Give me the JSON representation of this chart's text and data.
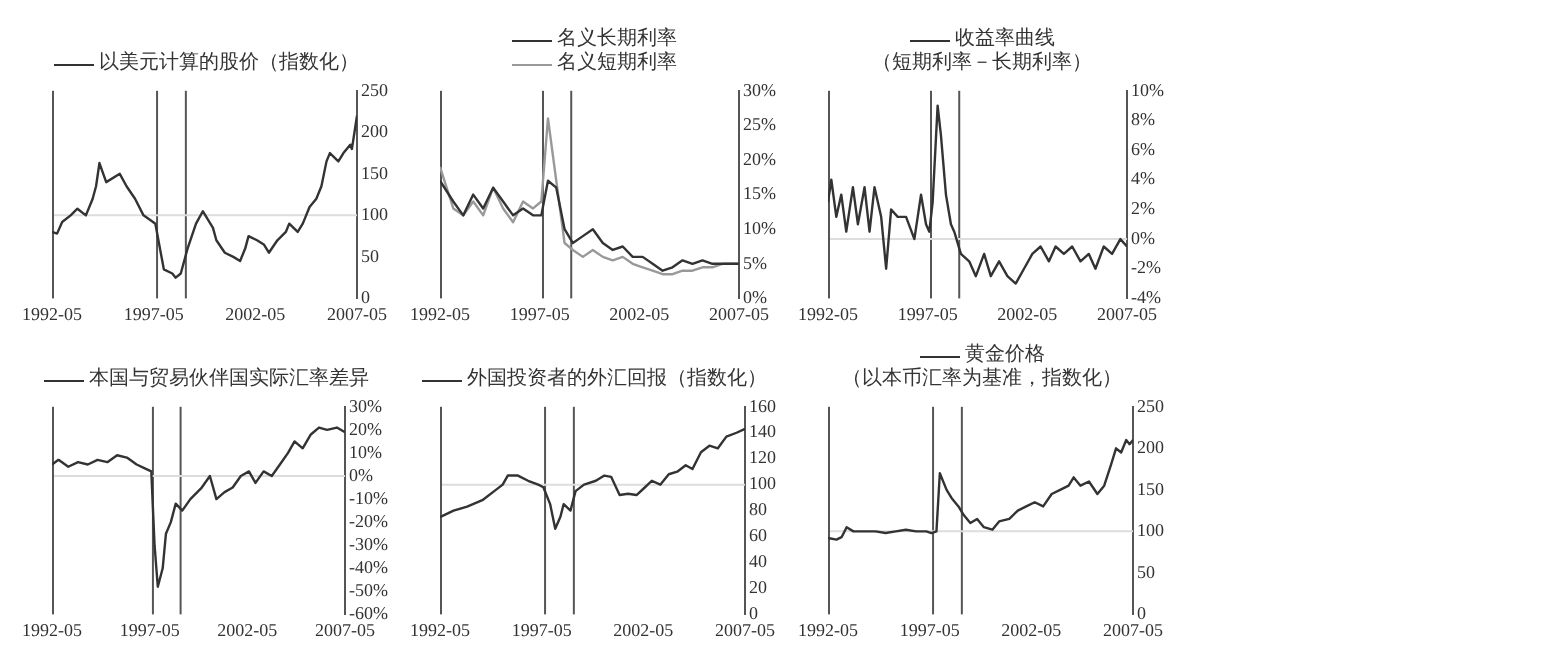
{
  "chart_data": [
    {
      "type": "line",
      "legend": "top",
      "x": [
        "1992-05",
        "1992-08",
        "1992-11",
        "1993-04",
        "1993-08",
        "1994-01",
        "1994-05",
        "1994-07",
        "1994-09",
        "1995-01",
        "1995-09",
        "1996-01",
        "1996-06",
        "1996-11",
        "1997-04",
        "1997-06",
        "1997-11",
        "1998-04",
        "1998-06",
        "1998-09",
        "1999-01",
        "1999-06",
        "1999-10",
        "2000-04",
        "2000-06",
        "2000-11",
        "2001-04",
        "2001-08",
        "2001-11",
        "2002-01",
        "2002-06",
        "2002-10",
        "2003-01",
        "2003-06",
        "2003-11",
        "2004-01",
        "2004-06",
        "2004-09",
        "2005-01",
        "2005-05",
        "2005-08",
        "2005-11",
        "2006-01",
        "2006-06",
        "2006-09",
        "2007-01",
        "2007-02",
        "2007-05"
      ],
      "series": [
        {
          "name": "以美元计算的股价（指数化）",
          "color": "#333333",
          "values": [
            80,
            78,
            92,
            100,
            108,
            100,
            120,
            135,
            163,
            140,
            150,
            135,
            120,
            100,
            93,
            90,
            35,
            30,
            25,
            30,
            60,
            90,
            105,
            85,
            70,
            55,
            50,
            45,
            60,
            75,
            70,
            65,
            55,
            70,
            80,
            90,
            80,
            90,
            110,
            120,
            135,
            165,
            175,
            165,
            175,
            185,
            180,
            220
          ]
        }
      ],
      "xlim": [
        "1992-05",
        "2007-05"
      ],
      "xticks": [
        "1992-05",
        "1997-05",
        "2002-05",
        "2007-05"
      ],
      "ylim": [
        0,
        250
      ],
      "yticks": [
        0,
        50,
        100,
        150,
        200,
        250
      ],
      "ref_lines": [
        {
          "axis": "x",
          "value": "1997-07",
          "color": "#555555"
        },
        {
          "axis": "x",
          "value": "1998-12",
          "color": "#555555"
        },
        {
          "axis": "y",
          "value": 100,
          "color": "#dddddd"
        }
      ]
    },
    {
      "type": "line",
      "legend": "top",
      "x": [
        "1992-05",
        "1993-01",
        "1993-07",
        "1994-01",
        "1994-07",
        "1995-01",
        "1995-07",
        "1996-01",
        "1996-07",
        "1997-01",
        "1997-06",
        "1997-10",
        "1998-03",
        "1998-08",
        "1999-01",
        "1999-07",
        "2000-01",
        "2000-07",
        "2001-01",
        "2001-07",
        "2002-01",
        "2002-07",
        "2003-01",
        "2003-07",
        "2004-01",
        "2004-07",
        "2005-01",
        "2005-07",
        "2006-01",
        "2006-07",
        "2007-01",
        "2007-05"
      ],
      "series": [
        {
          "name": "名义长期利率",
          "color": "#333333",
          "values": [
            17,
            14,
            12,
            15,
            13,
            16,
            14,
            12,
            13,
            12,
            12,
            17,
            16,
            10,
            8,
            9,
            10,
            8,
            7,
            7.5,
            6,
            6,
            5,
            4,
            4.5,
            5.5,
            5,
            5.5,
            5,
            5,
            5,
            5
          ]
        },
        {
          "name": "名义短期利率",
          "color": "#999999",
          "values": [
            19,
            13,
            12,
            14,
            12,
            16,
            13,
            11,
            14,
            13,
            14,
            26,
            17,
            8,
            7,
            6,
            7,
            6,
            5.5,
            6,
            5,
            4.5,
            4,
            3.5,
            3.5,
            4,
            4,
            4.5,
            4.5,
            5,
            5,
            5
          ]
        }
      ],
      "xlim": [
        "1992-05",
        "2007-05"
      ],
      "xticks": [
        "1992-05",
        "1997-05",
        "2002-05",
        "2007-05"
      ],
      "ylim": [
        0,
        30
      ],
      "yticks": [
        {
          "value": 0,
          "label": "0%"
        },
        {
          "value": 5,
          "label": "5%"
        },
        {
          "value": 10,
          "label": "10%"
        },
        {
          "value": 15,
          "label": "15%"
        },
        {
          "value": 20,
          "label": "20%"
        },
        {
          "value": 25,
          "label": "25%"
        },
        {
          "value": 30,
          "label": "30%"
        }
      ],
      "ref_lines": [
        {
          "axis": "x",
          "value": "1997-07",
          "color": "#555555"
        },
        {
          "axis": "x",
          "value": "1998-12",
          "color": "#555555"
        }
      ]
    },
    {
      "type": "line",
      "legend": "top",
      "subtitle": "（短期利率－长期利率）",
      "x": [
        "1992-05",
        "1992-07",
        "1992-10",
        "1993-01",
        "1993-04",
        "1993-08",
        "1993-11",
        "1994-03",
        "1994-06",
        "1994-09",
        "1995-01",
        "1995-04",
        "1995-07",
        "1995-11",
        "1996-04",
        "1996-09",
        "1997-01",
        "1997-04",
        "1997-06",
        "1997-08",
        "1997-11",
        "1998-01",
        "1998-04",
        "1998-07",
        "1998-09",
        "1999-01",
        "1999-06",
        "1999-10",
        "2000-03",
        "2000-07",
        "2000-12",
        "2001-05",
        "2001-10",
        "2002-03",
        "2002-08",
        "2003-01",
        "2003-06",
        "2003-10",
        "2004-03",
        "2004-08",
        "2005-01",
        "2005-06",
        "2005-10",
        "2006-03",
        "2006-08",
        "2007-01",
        "2007-05"
      ],
      "series": [
        {
          "name": "收益率曲线",
          "color": "#333333",
          "values": [
            2.5,
            4,
            1.5,
            3,
            0.5,
            3.5,
            1,
            3.5,
            0.5,
            3.5,
            1.5,
            -2,
            2,
            1.5,
            1.5,
            0,
            3,
            1,
            0.5,
            2.5,
            9,
            7,
            3,
            1,
            0.5,
            -1,
            -1.5,
            -2.5,
            -1,
            -2.5,
            -1.5,
            -2.5,
            -3,
            -2,
            -1,
            -0.5,
            -1.5,
            -0.5,
            -1,
            -0.5,
            -1.5,
            -1,
            -2,
            -0.5,
            -1,
            0,
            -0.5
          ]
        }
      ],
      "xlim": [
        "1992-05",
        "2007-05"
      ],
      "xticks": [
        "1992-05",
        "1997-05",
        "2002-05",
        "2007-05"
      ],
      "ylim": [
        -4,
        10
      ],
      "yticks": [
        {
          "value": -4,
          "label": "-4%"
        },
        {
          "value": -2,
          "label": "-2%"
        },
        {
          "value": 0,
          "label": "0%"
        },
        {
          "value": 2,
          "label": "2%"
        },
        {
          "value": 4,
          "label": "4%"
        },
        {
          "value": 6,
          "label": "6%"
        },
        {
          "value": 8,
          "label": "8%"
        },
        {
          "value": 10,
          "label": "10%"
        }
      ],
      "ref_lines": [
        {
          "axis": "x",
          "value": "1997-07",
          "color": "#555555"
        },
        {
          "axis": "x",
          "value": "1998-12",
          "color": "#555555"
        },
        {
          "axis": "y",
          "value": 0,
          "color": "#dddddd"
        }
      ]
    },
    {
      "type": "line",
      "legend": "top",
      "x": [
        "1992-05",
        "1992-09",
        "1993-03",
        "1993-09",
        "1994-03",
        "1994-09",
        "1995-03",
        "1995-09",
        "1996-03",
        "1996-09",
        "1997-03",
        "1997-06",
        "1997-08",
        "1997-10",
        "1998-01",
        "1998-03",
        "1998-06",
        "1998-09",
        "1999-01",
        "1999-06",
        "2000-01",
        "2000-06",
        "2000-10",
        "2001-03",
        "2001-08",
        "2002-01",
        "2002-06",
        "2002-10",
        "2003-03",
        "2003-08",
        "2004-01",
        "2004-06",
        "2004-10",
        "2005-03",
        "2005-08",
        "2006-01",
        "2006-06",
        "2006-12",
        "2007-05"
      ],
      "series": [
        {
          "name": "本国与贸易伙伴国实际汇率差异",
          "color": "#333333",
          "values": [
            5,
            7,
            4,
            6,
            5,
            7,
            6,
            9,
            8,
            5,
            3,
            2,
            -30,
            -48,
            -40,
            -25,
            -20,
            -12,
            -15,
            -10,
            -5,
            0,
            -10,
            -7,
            -5,
            0,
            2,
            -3,
            2,
            0,
            5,
            10,
            15,
            12,
            18,
            21,
            20,
            21,
            19
          ]
        }
      ],
      "xlim": [
        "1992-05",
        "2007-05"
      ],
      "xticks": [
        "1992-05",
        "1997-05",
        "2002-05",
        "2007-05"
      ],
      "ylim": [
        -60,
        30
      ],
      "yticks": [
        {
          "value": -60,
          "label": "-60%"
        },
        {
          "value": -50,
          "label": "-50%"
        },
        {
          "value": -40,
          "label": "-40%"
        },
        {
          "value": -30,
          "label": "-30%"
        },
        {
          "value": -20,
          "label": "-20%"
        },
        {
          "value": -10,
          "label": "-10%"
        },
        {
          "value": 0,
          "label": "0%"
        },
        {
          "value": 10,
          "label": "10%"
        },
        {
          "value": 20,
          "label": "20%"
        },
        {
          "value": 30,
          "label": "30%"
        }
      ],
      "ref_lines": [
        {
          "axis": "x",
          "value": "1997-07",
          "color": "#555555"
        },
        {
          "axis": "x",
          "value": "1998-12",
          "color": "#555555"
        },
        {
          "axis": "y",
          "value": 0,
          "color": "#dddddd"
        }
      ]
    },
    {
      "type": "line",
      "legend": "top",
      "x": [
        "1992-05",
        "1993-01",
        "1993-09",
        "1994-06",
        "1995-01",
        "1995-06",
        "1995-09",
        "1996-03",
        "1996-09",
        "1997-03",
        "1997-06",
        "1997-10",
        "1998-01",
        "1998-04",
        "1998-06",
        "1998-10",
        "1999-01",
        "1999-06",
        "2000-01",
        "2000-06",
        "2000-10",
        "2001-03",
        "2001-08",
        "2002-01",
        "2002-06",
        "2002-10",
        "2003-03",
        "2003-08",
        "2004-01",
        "2004-06",
        "2004-10",
        "2005-03",
        "2005-08",
        "2006-01",
        "2006-06",
        "2006-12",
        "2007-05"
      ],
      "series": [
        {
          "name": "外国投资者的外汇回报（指数化）",
          "color": "#333333",
          "values": [
            75,
            80,
            83,
            88,
            95,
            100,
            107,
            107,
            103,
            100,
            98,
            85,
            66,
            75,
            85,
            80,
            95,
            100,
            103,
            107,
            106,
            92,
            93,
            92,
            98,
            103,
            100,
            108,
            110,
            115,
            112,
            125,
            130,
            128,
            137,
            140,
            143
          ]
        }
      ],
      "xlim": [
        "1992-05",
        "2007-05"
      ],
      "xticks": [
        "1992-05",
        "1997-05",
        "2002-05",
        "2007-05"
      ],
      "ylim": [
        0,
        160
      ],
      "yticks": [
        0,
        20,
        40,
        60,
        80,
        100,
        120,
        140,
        160
      ],
      "ref_lines": [
        {
          "axis": "x",
          "value": "1997-07",
          "color": "#555555"
        },
        {
          "axis": "x",
          "value": "1998-12",
          "color": "#555555"
        },
        {
          "axis": "y",
          "value": 100,
          "color": "#dddddd"
        }
      ]
    },
    {
      "type": "line",
      "legend": "top",
      "subtitle": "（以本币汇率为基准，指数化）",
      "x": [
        "1992-05",
        "1992-10",
        "1993-01",
        "1993-04",
        "1993-08",
        "1994-03",
        "1994-09",
        "1995-03",
        "1995-09",
        "1996-03",
        "1996-09",
        "1997-03",
        "1997-06",
        "1997-09",
        "1997-11",
        "1998-03",
        "1998-06",
        "1998-10",
        "1999-01",
        "1999-05",
        "1999-09",
        "2000-01",
        "2000-06",
        "2000-10",
        "2001-04",
        "2001-09",
        "2002-02",
        "2002-07",
        "2002-12",
        "2003-05",
        "2003-10",
        "2004-03",
        "2004-06",
        "2004-10",
        "2005-03",
        "2005-08",
        "2005-12",
        "2006-04",
        "2006-07",
        "2006-10",
        "2007-01",
        "2007-03",
        "2007-05"
      ],
      "series": [
        {
          "name": "黄金价格",
          "color": "#333333",
          "values": [
            92,
            90,
            93,
            105,
            100,
            100,
            100,
            98,
            100,
            102,
            100,
            100,
            98,
            100,
            170,
            150,
            140,
            130,
            120,
            110,
            115,
            105,
            102,
            112,
            115,
            125,
            130,
            135,
            130,
            145,
            150,
            155,
            165,
            155,
            160,
            145,
            155,
            180,
            200,
            195,
            210,
            205,
            210
          ]
        }
      ],
      "xlim": [
        "1992-05",
        "2007-05"
      ],
      "xticks": [
        "1992-05",
        "1997-05",
        "2002-05",
        "2007-05"
      ],
      "ylim": [
        0,
        250
      ],
      "yticks": [
        0,
        50,
        100,
        150,
        200,
        250
      ],
      "ref_lines": [
        {
          "axis": "x",
          "value": "1997-07",
          "color": "#555555"
        },
        {
          "axis": "x",
          "value": "1998-12",
          "color": "#555555"
        },
        {
          "axis": "y",
          "value": 100,
          "color": "#dddddd"
        }
      ]
    }
  ]
}
